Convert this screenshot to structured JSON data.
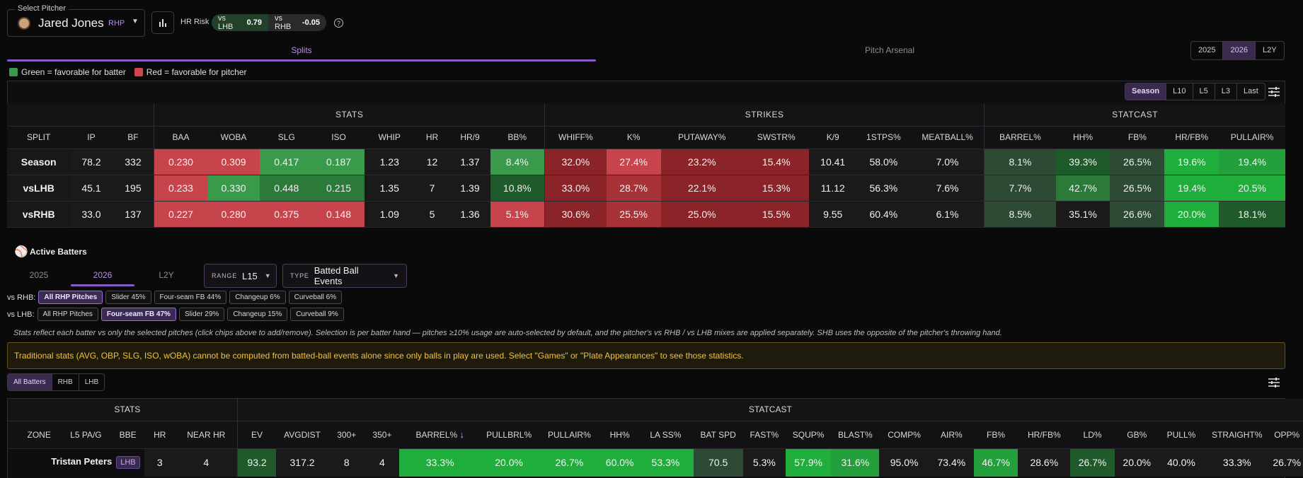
{
  "header": {
    "select_label": "Select Pitcher",
    "pitcher_name": "Jared Jones",
    "pitcher_hand": "RHP",
    "hr_risk_label": "HR Risk",
    "risk_lhb_label": "vs LHB",
    "risk_lhb_value": "0.79",
    "risk_rhb_label": "vs RHB",
    "risk_rhb_value": "-0.05"
  },
  "tabs": {
    "splits": "Splits",
    "arsenal": "Pitch Arsenal"
  },
  "years": [
    "2025",
    "2026",
    "L2Y"
  ],
  "legend": {
    "green": "Green = favorable for batter",
    "red": "Red = favorable for pitcher"
  },
  "ranges": [
    "Season",
    "L10",
    "L5",
    "L3",
    "Last"
  ],
  "splits": {
    "groups": {
      "stats": "STATS",
      "strikes": "STRIKES",
      "statcast": "STATCAST"
    },
    "columns": [
      "SPLIT",
      "IP",
      "BF",
      "BAA",
      "WOBA",
      "SLG",
      "ISO",
      "WHIP",
      "HR",
      "HR/9",
      "BB%",
      "WHIFF%",
      "K%",
      "PUTAWAY%",
      "SWSTR%",
      "K/9",
      "1STPS%",
      "MEATBALL%",
      "BARREL%",
      "HH%",
      "FB%",
      "HR/FB%",
      "PULLAIR%"
    ],
    "rows": [
      [
        "Season",
        "78.2",
        "332",
        "0.230",
        "0.309",
        "0.417",
        "0.187",
        "1.23",
        "12",
        "1.37",
        "8.4%",
        "32.0%",
        "27.4%",
        "23.2%",
        "15.4%",
        "10.41",
        "58.0%",
        "7.0%",
        "8.1%",
        "39.3%",
        "26.5%",
        "19.6%",
        "19.4%"
      ],
      [
        "vsLHB",
        "45.1",
        "195",
        "0.233",
        "0.330",
        "0.448",
        "0.215",
        "1.35",
        "7",
        "1.39",
        "10.8%",
        "33.0%",
        "28.7%",
        "22.1%",
        "15.3%",
        "11.12",
        "56.3%",
        "7.6%",
        "7.7%",
        "42.7%",
        "26.5%",
        "19.4%",
        "20.5%"
      ],
      [
        "vsRHB",
        "33.0",
        "137",
        "0.227",
        "0.280",
        "0.375",
        "0.148",
        "1.09",
        "5",
        "1.36",
        "5.1%",
        "30.6%",
        "25.5%",
        "25.0%",
        "15.5%",
        "9.55",
        "60.4%",
        "6.1%",
        "8.5%",
        "35.1%",
        "26.6%",
        "20.0%",
        "18.1%"
      ]
    ]
  },
  "active_batters": {
    "title": "Active Batters",
    "year_tabs": [
      "2025",
      "2026",
      "L2Y"
    ],
    "range_key": "RANGE",
    "range_value": "L15",
    "type_key": "TYPE",
    "type_value": "Batted Ball Events",
    "vs_rhb_label": "vs RHB:",
    "vs_rhb_chips": [
      "All RHP Pitches",
      "Slider 45%",
      "Four-seam FB 44%",
      "Changeup 6%",
      "Curveball 6%"
    ],
    "vs_lhb_label": "vs LHB:",
    "vs_lhb_chips": [
      "All RHP Pitches",
      "Four-seam FB 47%",
      "Slider 29%",
      "Changeup 15%",
      "Curveball 9%"
    ],
    "note": "Stats reflect each batter vs only the selected pitches (click chips above to add/remove). Selection is per batter hand — pitches ≥10% usage are auto-selected by default, and the pitcher's vs RHB / vs LHB mixes are applied separately. SHB uses the opposite of the pitcher's throwing hand.",
    "warning": "Traditional stats (AVG, OBP, SLG, ISO, wOBA) cannot be computed from batted-ball events alone since only balls in play are used. Select \"Games\" or \"Plate Appearances\" to see those statistics.",
    "batter_filters": [
      "All Batters",
      "RHB",
      "LHB"
    ]
  },
  "batters": {
    "groups": {
      "stats": "STATS",
      "statcast": "STATCAST"
    },
    "columns": [
      "ZONE",
      "L5 PA/G",
      "BBE",
      "HR",
      "NEAR HR",
      "EV",
      "AVGDIST",
      "300+",
      "350+",
      "BARREL%",
      "PULLBRL%",
      "PULLAIR%",
      "HH%",
      "LA SS%",
      "BAT SPD",
      "FAST%",
      "SQUP%",
      "BLAST%",
      "COMP%",
      "AIR%",
      "FB%",
      "HR/FB%",
      "LD%",
      "GB%",
      "PULL%",
      "STRAIGHT%",
      "OPP%"
    ],
    "sort_arrow": "↓",
    "rows": [
      {
        "name": "Tristan Peters",
        "hand": "LHB",
        "values": [
          "",
          "",
          "",
          "3",
          "4",
          "93.2",
          "317.2",
          "8",
          "4",
          "33.3%",
          "20.0%",
          "26.7%",
          "60.0%",
          "53.3%",
          "70.5",
          "5.3%",
          "57.9%",
          "31.6%",
          "95.0%",
          "73.4%",
          "46.7%",
          "28.6%",
          "26.7%",
          "20.0%",
          "40.0%",
          "33.3%",
          "26.7%"
        ]
      }
    ]
  },
  "colors": {
    "accent": "#8a5cc7",
    "green": "#3a9a4c",
    "red": "#d0454f",
    "warning": "#f3c23c"
  }
}
